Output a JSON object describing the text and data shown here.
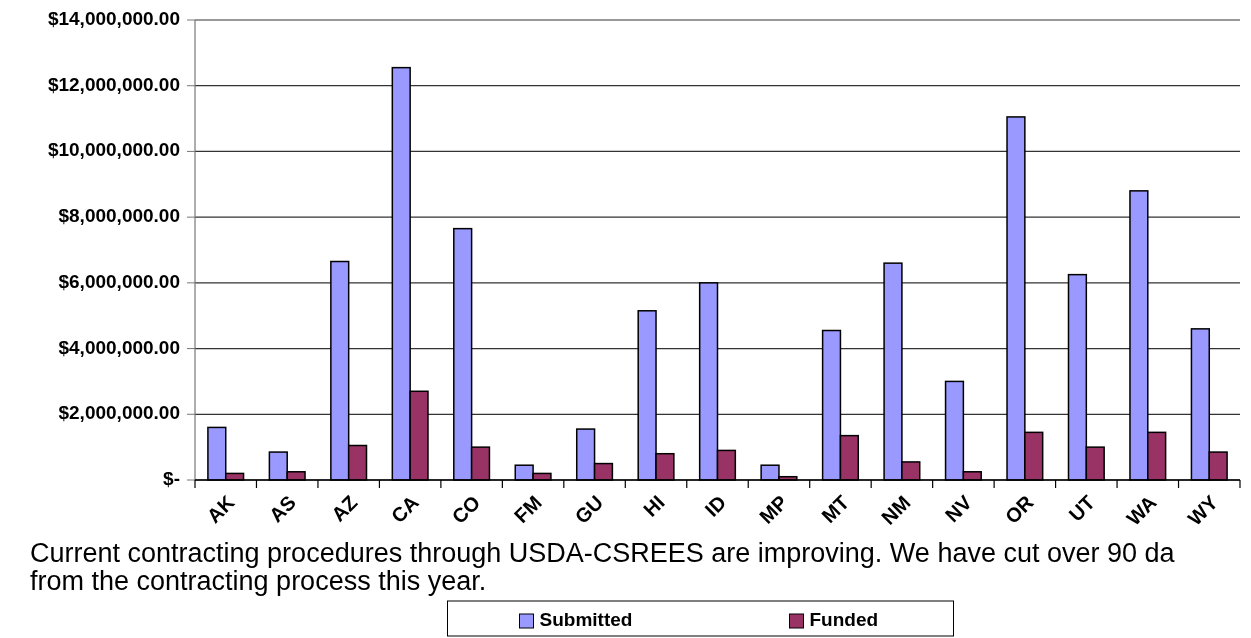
{
  "chart_data": {
    "type": "bar",
    "categories": [
      "AK",
      "AS",
      "AZ",
      "CA",
      "CO",
      "FM",
      "GU",
      "HI",
      "ID",
      "MP",
      "MT",
      "NM",
      "NV",
      "OR",
      "UT",
      "WA",
      "WY"
    ],
    "series": [
      {
        "name": "Submitted",
        "color": "#9999ff",
        "values": [
          1600000,
          850000,
          6650000,
          12550000,
          7650000,
          450000,
          1550000,
          5150000,
          6000000,
          450000,
          4550000,
          6600000,
          3000000,
          11050000,
          6250000,
          8800000,
          4600000
        ]
      },
      {
        "name": "Funded",
        "color": "#993366",
        "values": [
          200000,
          250000,
          1050000,
          2700000,
          1000000,
          200000,
          500000,
          800000,
          900000,
          100000,
          1350000,
          550000,
          250000,
          1450000,
          1000000,
          1450000,
          850000
        ]
      }
    ],
    "ylim": [
      0,
      14000000
    ],
    "yticks": [
      {
        "value": 0,
        "label": "$-"
      },
      {
        "value": 2000000,
        "label": "$2,000,000.00"
      },
      {
        "value": 4000000,
        "label": "$4,000,000.00"
      },
      {
        "value": 6000000,
        "label": "$6,000,000.00"
      },
      {
        "value": 8000000,
        "label": "$8,000,000.00"
      },
      {
        "value": 10000000,
        "label": "$10,000,000.00"
      },
      {
        "value": 12000000,
        "label": "$12,000,000.00"
      },
      {
        "value": 14000000,
        "label": "$14,000,000.00"
      }
    ],
    "grid": "y",
    "legend": "bottom",
    "annotations": [
      "Current contracting procedures through USDA-CSREES are improving. We have cut over 90 da from the contracting process this year."
    ]
  }
}
